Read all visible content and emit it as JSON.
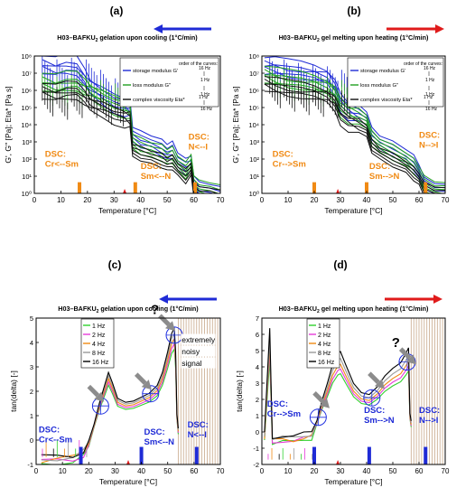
{
  "colors": {
    "axis": "#000000",
    "storage": "#1f2bd6",
    "loss": "#22a022",
    "complex": "#111111",
    "dsc_orange": "#f08a14",
    "dsc_blue": "#1f2bd6",
    "tick_red": "#e01b1b",
    "arrow_blue": "#1f2bd6",
    "arrow_red": "#e01b1b",
    "hatch": "#c8a88a",
    "freq_1hz": "#31d12e",
    "freq_2hz": "#e63bd8",
    "freq_4hz": "#f08a14",
    "freq_8hz": "#9a9a9a",
    "freq_16hz": "#000000",
    "ellipse": "#2030e0",
    "grey_arrow": "#8c8c8c"
  },
  "chart_data": [
    {
      "panel_label": "(a)",
      "type": "line",
      "title_main": "H03–BAFKU",
      "title_sub": "2",
      "title_rest": " gelation upon cooling (1°C/min)",
      "direction": "left",
      "xlabel": "Temperature [°C]",
      "ylabel": "G', G'' [Pa]; Eta* [Pa s]",
      "xlim": [
        0,
        70
      ],
      "xticks": [
        0,
        10,
        20,
        30,
        40,
        50,
        60,
        70
      ],
      "ylog": true,
      "ylim": [
        1,
        100000000
      ],
      "yticks": [
        "10⁰",
        "10¹",
        "10²",
        "10³",
        "10⁴",
        "10⁵",
        "10⁶",
        "10⁷",
        "10⁸"
      ],
      "legend": {
        "header": "order of the curves:",
        "items": [
          {
            "name": "storage modulus G'",
            "color_key": "storage",
            "from": "16 Hz",
            "to": "1 Hz"
          },
          {
            "name": "loss modulus G''",
            "color_key": "loss",
            "from": "",
            "to": "1 Hz"
          },
          {
            "name": "complex viscosity Eta*",
            "color_key": "complex",
            "from": "1 Hz",
            "to": "16 Hz"
          }
        ]
      },
      "series_shape": {
        "storage": [
          [
            3,
            8.0
          ],
          [
            8,
            7.8
          ],
          [
            12,
            7.9
          ],
          [
            16,
            7.8
          ],
          [
            19,
            7.2
          ],
          [
            21,
            6.7
          ],
          [
            26,
            6.2
          ],
          [
            30,
            5.8
          ],
          [
            34,
            5.6
          ],
          [
            36,
            5.5
          ],
          [
            37,
            3.9
          ],
          [
            40,
            3.6
          ],
          [
            44,
            3.4
          ],
          [
            48,
            3.1
          ],
          [
            50,
            2.9
          ],
          [
            52,
            3.0
          ],
          [
            54,
            2.4
          ],
          [
            57,
            2.0
          ],
          [
            59,
            2.2
          ],
          [
            60,
            1.0
          ],
          [
            62,
            0.7
          ],
          [
            66,
            0.5
          ],
          [
            70,
            0.4
          ]
        ],
        "loss": [
          [
            3,
            7.0
          ],
          [
            8,
            6.8
          ],
          [
            12,
            6.9
          ],
          [
            16,
            6.9
          ],
          [
            19,
            6.6
          ],
          [
            21,
            6.4
          ],
          [
            26,
            6.0
          ],
          [
            30,
            5.7
          ],
          [
            34,
            5.5
          ],
          [
            36,
            5.3
          ],
          [
            37,
            3.5
          ],
          [
            40,
            3.2
          ],
          [
            44,
            3.0
          ],
          [
            48,
            2.8
          ],
          [
            50,
            2.6
          ],
          [
            52,
            2.7
          ],
          [
            54,
            2.2
          ],
          [
            57,
            1.8
          ],
          [
            59,
            2.3
          ],
          [
            60,
            1.0
          ],
          [
            62,
            0.8
          ],
          [
            66,
            0.6
          ],
          [
            70,
            0.5
          ]
        ],
        "complex": [
          [
            3,
            6.4
          ],
          [
            8,
            6.2
          ],
          [
            12,
            6.3
          ],
          [
            16,
            6.3
          ],
          [
            19,
            5.9
          ],
          [
            21,
            5.6
          ],
          [
            26,
            5.3
          ],
          [
            30,
            5.0
          ],
          [
            34,
            4.8
          ],
          [
            36,
            4.7
          ],
          [
            37,
            2.9
          ],
          [
            40,
            2.7
          ],
          [
            44,
            2.5
          ],
          [
            48,
            2.3
          ],
          [
            50,
            2.1
          ],
          [
            52,
            2.2
          ],
          [
            54,
            1.8
          ],
          [
            57,
            1.4
          ],
          [
            59,
            1.8
          ],
          [
            60,
            0.6
          ],
          [
            62,
            0.4
          ],
          [
            66,
            0.3
          ],
          [
            70,
            0.2
          ]
        ],
        "spread": [
          0.0,
          -0.35,
          -0.7,
          -1.0,
          -1.3
        ]
      },
      "dsc_bars": [
        {
          "x": 17,
          "label1": "DSC:",
          "label2": "Cr<--Sm",
          "color_key": "dsc_orange",
          "lx": 4,
          "ly": 1.6
        },
        {
          "x": 38,
          "label1": "DSC:",
          "label2": "Sm<--N",
          "color_key": "dsc_orange",
          "lx": 40,
          "ly": 0.9
        },
        {
          "x": 60.5,
          "label1": "DSC:",
          "label2": "N<--I",
          "color_key": "dsc_orange",
          "lx": 58,
          "ly": 2.6
        }
      ],
      "red_tick_x": 34
    },
    {
      "panel_label": "(b)",
      "type": "line",
      "title_main": "H03–BAFKU",
      "title_sub": "2",
      "title_rest": " gel melting upon heating (1°C/min)",
      "direction": "right",
      "xlabel": "Temperature [°C]",
      "ylabel": "G', G'' [Pa]; Eta* [Pa s]",
      "xlim": [
        0,
        70
      ],
      "xticks": [
        0,
        10,
        20,
        30,
        40,
        50,
        60,
        70
      ],
      "ylog": true,
      "ylim": [
        1,
        100000000
      ],
      "yticks": [
        "10⁰",
        "10¹",
        "10²",
        "10³",
        "10⁴",
        "10⁵",
        "10⁶",
        "10⁷",
        "10⁸"
      ],
      "legend": {
        "header": "order of the curves:",
        "items": [
          {
            "name": "storage modulus G'",
            "color_key": "storage",
            "from": "16 Hz",
            "to": "1 Hz"
          },
          {
            "name": "loss modulus G''",
            "color_key": "loss",
            "from": "",
            "to": "1 Hz"
          },
          {
            "name": "complex viscosity Eta*",
            "color_key": "complex",
            "from": "1 Hz",
            "to": "16 Hz"
          }
        ]
      },
      "series_shape": {
        "storage": [
          [
            1,
            7.9
          ],
          [
            5,
            7.8
          ],
          [
            10,
            7.6
          ],
          [
            15,
            7.5
          ],
          [
            20,
            7.4
          ],
          [
            25,
            7.2
          ],
          [
            28,
            6.6
          ],
          [
            30,
            5.8
          ],
          [
            33,
            5.3
          ],
          [
            37,
            5.1
          ],
          [
            40,
            4.8
          ],
          [
            42,
            3.8
          ],
          [
            45,
            3.4
          ],
          [
            50,
            3.0
          ],
          [
            55,
            2.6
          ],
          [
            58,
            2.2
          ],
          [
            60,
            1.7
          ],
          [
            62,
            0.9
          ],
          [
            66,
            0.6
          ],
          [
            70,
            0.5
          ]
        ],
        "loss": [
          [
            1,
            7.4
          ],
          [
            5,
            7.2
          ],
          [
            10,
            7.0
          ],
          [
            15,
            6.9
          ],
          [
            20,
            6.8
          ],
          [
            25,
            6.6
          ],
          [
            28,
            6.2
          ],
          [
            30,
            5.5
          ],
          [
            33,
            5.1
          ],
          [
            37,
            4.9
          ],
          [
            40,
            4.6
          ],
          [
            42,
            3.6
          ],
          [
            45,
            3.2
          ],
          [
            50,
            2.8
          ],
          [
            55,
            2.4
          ],
          [
            58,
            2.0
          ],
          [
            60,
            1.6
          ],
          [
            62,
            1.0
          ],
          [
            66,
            0.7
          ],
          [
            70,
            0.6
          ]
        ],
        "complex": [
          [
            1,
            6.8
          ],
          [
            5,
            6.6
          ],
          [
            10,
            6.4
          ],
          [
            15,
            6.3
          ],
          [
            20,
            6.2
          ],
          [
            25,
            6.0
          ],
          [
            28,
            5.6
          ],
          [
            30,
            4.9
          ],
          [
            33,
            4.5
          ],
          [
            37,
            4.3
          ],
          [
            40,
            4.0
          ],
          [
            42,
            3.1
          ],
          [
            45,
            2.7
          ],
          [
            50,
            2.3
          ],
          [
            55,
            1.9
          ],
          [
            58,
            1.5
          ],
          [
            60,
            1.2
          ],
          [
            62,
            0.6
          ],
          [
            66,
            0.4
          ],
          [
            70,
            0.3
          ]
        ],
        "spread": [
          0.0,
          -0.3,
          -0.6,
          -0.9,
          -1.2
        ]
      },
      "dsc_bars": [
        {
          "x": 20,
          "label1": "DSC:",
          "label2": "Cr-->Sm",
          "color_key": "dsc_orange",
          "lx": 4,
          "ly": 1.6
        },
        {
          "x": 40,
          "label1": "DSC:",
          "label2": "Sm-->N",
          "color_key": "dsc_orange",
          "lx": 41,
          "ly": 0.9
        },
        {
          "x": 62.5,
          "label1": "DSC:",
          "label2": "N-->I",
          "color_key": "dsc_orange",
          "lx": 60,
          "ly": 2.7
        }
      ],
      "red_tick_x": 29
    },
    {
      "panel_label": "(c)",
      "type": "line",
      "title_main": "H03–BAFKU",
      "title_sub": "2",
      "title_rest": " gelation upon cooling (1°C/min)",
      "direction": "left",
      "xlabel": "Temperature [°C]",
      "ylabel": "tan(delta) [-]",
      "xlim": [
        0,
        70
      ],
      "xticks": [
        0,
        10,
        20,
        30,
        40,
        50,
        60,
        70
      ],
      "ylim": [
        -1,
        5
      ],
      "yticks": [
        -1,
        0,
        1,
        2,
        3,
        4,
        5
      ],
      "legend_items": [
        {
          "name": "1 Hz",
          "color_key": "freq_1hz"
        },
        {
          "name": "2 Hz",
          "color_key": "freq_2hz"
        },
        {
          "name": "4 Hz",
          "color_key": "freq_4hz"
        },
        {
          "name": "8 Hz",
          "color_key": "freq_8hz"
        },
        {
          "name": "16 Hz",
          "color_key": "freq_16hz"
        }
      ],
      "series_shape": [
        [
          2,
          -0.8
        ],
        [
          8,
          -0.75
        ],
        [
          14,
          -0.7
        ],
        [
          18,
          -0.5
        ],
        [
          20,
          -0.1
        ],
        [
          22,
          0.6
        ],
        [
          24,
          1.4
        ],
        [
          26,
          2.1
        ],
        [
          27.5,
          2.6
        ],
        [
          29,
          2.2
        ],
        [
          31,
          1.6
        ],
        [
          34,
          1.45
        ],
        [
          37,
          1.5
        ],
        [
          40,
          1.65
        ],
        [
          43,
          1.8
        ],
        [
          46,
          2.1
        ],
        [
          48,
          2.6
        ],
        [
          50,
          3.4
        ],
        [
          51.5,
          4.1
        ],
        [
          52.5,
          4.3
        ],
        [
          53,
          3.4
        ],
        [
          53.5,
          1.0
        ],
        [
          54,
          0.4
        ]
      ],
      "spread": [
        -0.4,
        -0.25,
        -0.1,
        0.05,
        0.2
      ],
      "hatch_from": 54,
      "noisy_text": [
        "extremely",
        "noisy",
        "signal"
      ],
      "question": "?",
      "dsc_bars": [
        {
          "x": 17,
          "label1": "DSC:",
          "label2": "Cr<--Sm",
          "color_key": "dsc_blue",
          "lx": 1,
          "ly": -0.05
        },
        {
          "x": 40,
          "label1": "DSC:",
          "label2": "Sm<--N",
          "color_key": "dsc_blue",
          "lx": 41,
          "ly": -0.15
        },
        {
          "x": 61,
          "label1": "DSC:",
          "label2": "N<--I",
          "color_key": "dsc_blue",
          "lx": 57.5,
          "ly": 0.15
        }
      ],
      "ellipses": [
        [
          24.5,
          1.4
        ],
        [
          43.5,
          1.9
        ],
        [
          52.5,
          4.3
        ]
      ],
      "grey_arrows": [
        [
          20,
          2.2
        ],
        [
          38,
          2.7
        ],
        [
          47,
          5.1
        ]
      ],
      "red_tick_x": 35
    },
    {
      "panel_label": "(d)",
      "type": "line",
      "title_main": "H03–BAFKU",
      "title_sub": "2",
      "title_rest": " gel melting upon heating  (1°C/min)",
      "direction": "right",
      "xlabel": "Temperature [°C]",
      "ylabel": "tan(delta) [-]",
      "xlim": [
        0,
        70
      ],
      "xticks": [
        0,
        10,
        20,
        30,
        40,
        50,
        60,
        70
      ],
      "ylim": [
        -2,
        7
      ],
      "yticks": [
        -2,
        -1,
        0,
        1,
        2,
        3,
        4,
        5,
        6,
        7
      ],
      "legend_items": [
        {
          "name": "1 Hz",
          "color_key": "freq_1hz"
        },
        {
          "name": "2 Hz",
          "color_key": "freq_2hz"
        },
        {
          "name": "4 Hz",
          "color_key": "freq_4hz"
        },
        {
          "name": "8 Hz",
          "color_key": "freq_8hz"
        },
        {
          "name": "16 Hz",
          "color_key": "freq_16hz"
        }
      ],
      "series_shape": [
        [
          1,
          -0.3
        ],
        [
          3,
          5.5
        ],
        [
          4,
          -0.5
        ],
        [
          8,
          -0.4
        ],
        [
          12,
          -0.45
        ],
        [
          16,
          -0.3
        ],
        [
          19,
          -0.2
        ],
        [
          21,
          0.6
        ],
        [
          23,
          1.7
        ],
        [
          25,
          2.6
        ],
        [
          27,
          3.6
        ],
        [
          29,
          4.2
        ],
        [
          30,
          4.3
        ],
        [
          32,
          3.6
        ],
        [
          35,
          2.6
        ],
        [
          38,
          2.1
        ],
        [
          41,
          2.0
        ],
        [
          44,
          2.4
        ],
        [
          47,
          3.0
        ],
        [
          50,
          3.4
        ],
        [
          53,
          3.7
        ],
        [
          55,
          4.2
        ],
        [
          56,
          4.5
        ],
        [
          56.5,
          1.0
        ],
        [
          57,
          0.5
        ]
      ],
      "spread": [
        -0.5,
        -0.3,
        -0.1,
        0.15,
        0.45
      ],
      "hatch_from": 57,
      "question": "?",
      "dsc_bars": [
        {
          "x": 20,
          "label1": "DSC:",
          "label2": "Cr-->Sm",
          "color_key": "dsc_blue",
          "lx": 2,
          "ly": 1.0
        },
        {
          "x": 41,
          "label1": "DSC:",
          "label2": "Sm-->N",
          "color_key": "dsc_blue",
          "lx": 39,
          "ly": 0.6
        },
        {
          "x": 62.5,
          "label1": "DSC:",
          "label2": "N-->I",
          "color_key": "dsc_blue",
          "lx": 60,
          "ly": 0.6
        }
      ],
      "ellipses": [
        [
          21.5,
          0.9
        ],
        [
          42,
          2.1
        ],
        [
          55.5,
          4.3
        ]
      ],
      "grey_arrows": [
        [
          20,
          2.4
        ],
        [
          41,
          3.6
        ],
        [
          53,
          5.1
        ]
      ],
      "red_tick_x": 29
    }
  ]
}
